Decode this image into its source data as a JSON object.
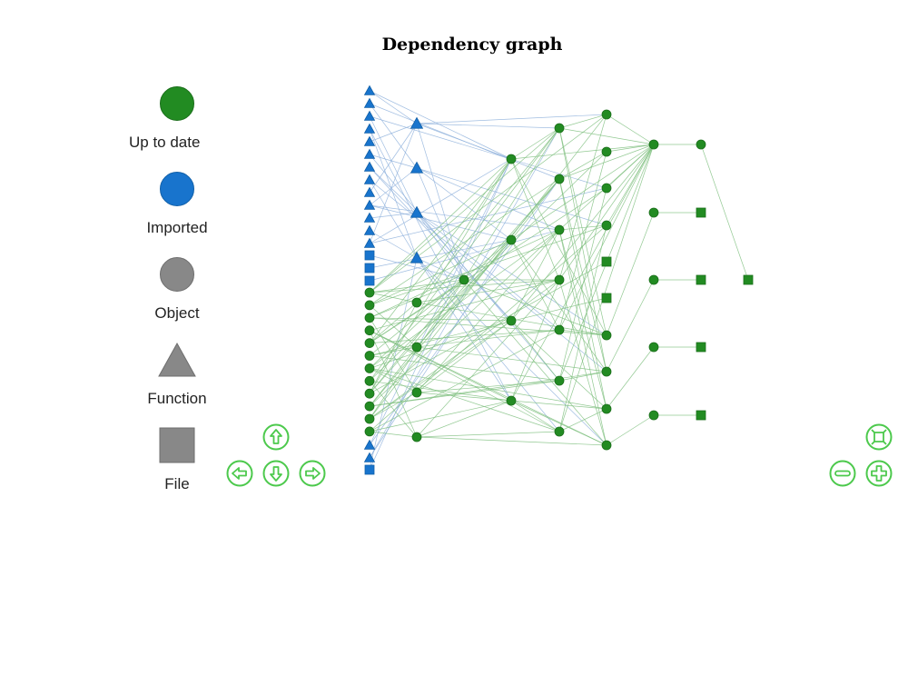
{
  "title": "Dependency graph",
  "legend": [
    {
      "label": "Up to date",
      "shape": "circle",
      "color": "#228B22",
      "stroke": "#1a6e1a"
    },
    {
      "label": "Imported",
      "shape": "circle",
      "color": "#1874CD",
      "stroke": "#1260a8"
    },
    {
      "label": "Object",
      "shape": "circle",
      "color": "#888888",
      "stroke": "#6e6e6e"
    },
    {
      "label": "Function",
      "shape": "triangle",
      "color": "#888888",
      "stroke": "#6e6e6e"
    },
    {
      "label": "File",
      "shape": "square",
      "color": "#888888",
      "stroke": "#6e6e6e"
    }
  ],
  "colors": {
    "up_to_date": "#228B22",
    "imported": "#1874CD",
    "edge_green": "#7fbf7f",
    "edge_blue": "#8fb2dc",
    "nav_button": "#4cc94c"
  },
  "nav_buttons": [
    {
      "name": "nav-up-button",
      "icon": "arrow-up-icon"
    },
    {
      "name": "nav-left-button",
      "icon": "arrow-left-icon"
    },
    {
      "name": "nav-down-button",
      "icon": "arrow-down-icon"
    },
    {
      "name": "nav-right-button",
      "icon": "arrow-right-icon"
    },
    {
      "name": "zoom-fit-button",
      "icon": "fit-icon"
    },
    {
      "name": "zoom-out-button",
      "icon": "minus-icon"
    },
    {
      "name": "zoom-in-button",
      "icon": "plus-icon"
    }
  ]
}
